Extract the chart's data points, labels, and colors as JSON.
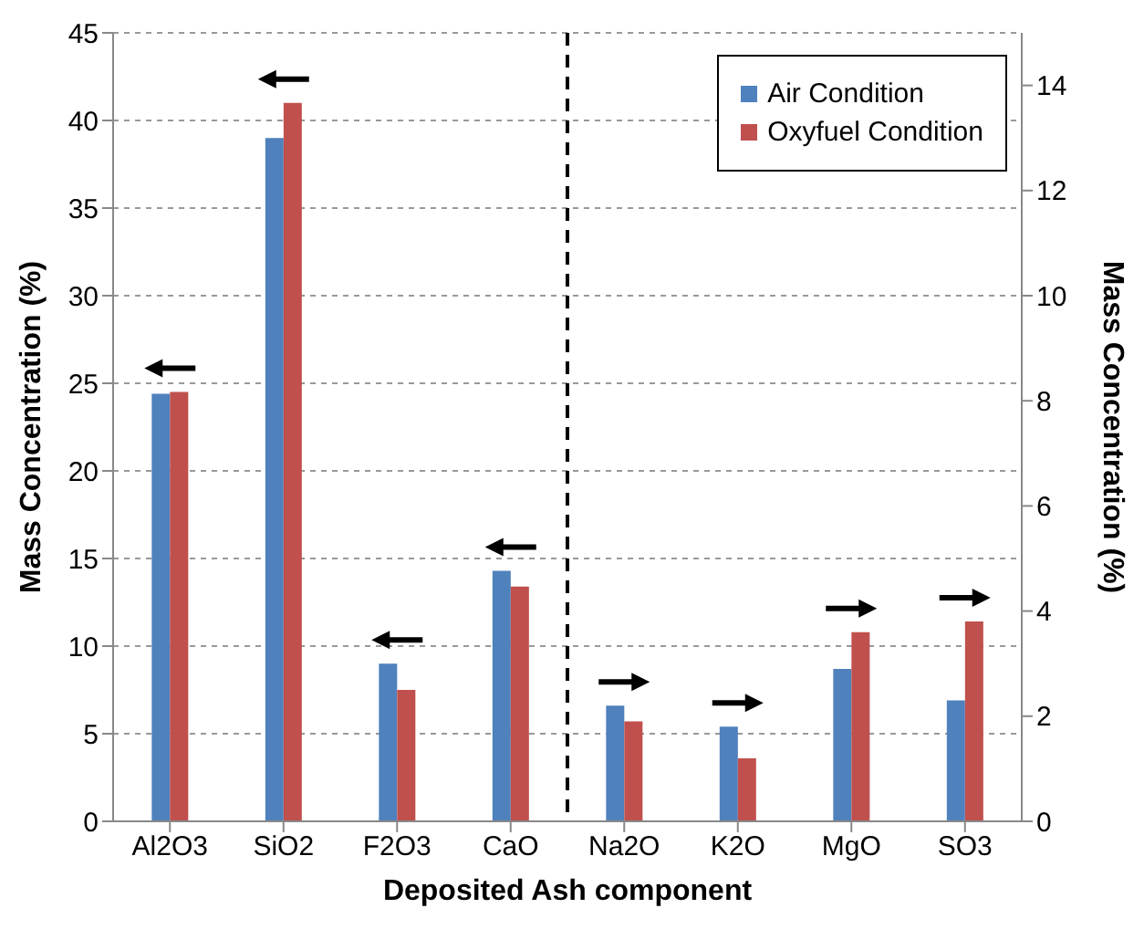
{
  "chart_data": {
    "type": "bar",
    "xlabel": "Deposited Ash component",
    "ylabel": "Mass Concentration (%)",
    "y2label": "Mass Concentration (%)",
    "categories": [
      "Al2O3",
      "SiO2",
      "F2O3",
      "CaO",
      "Na2O",
      "K2O",
      "MgO",
      "SO3"
    ],
    "series": [
      {
        "name": "Air Condition",
        "color": "#4f81bd",
        "values": [
          24.4,
          39.0,
          9.0,
          14.3,
          null,
          null,
          null,
          null
        ]
      },
      {
        "name": "Oxyfuel Condition",
        "color": "#c0504d",
        "values": [
          24.5,
          41.0,
          7.5,
          13.4,
          null,
          null,
          null,
          null
        ]
      },
      {
        "color": "#4f81bd",
        "axis": "y2",
        "values": [
          null,
          null,
          null,
          null,
          2.2,
          1.8,
          2.9,
          2.3
        ]
      },
      {
        "color": "#c0504d",
        "axis": "y2",
        "values": [
          null,
          null,
          null,
          null,
          1.9,
          1.2,
          3.6,
          3.8
        ]
      }
    ],
    "ylim": [
      0,
      45
    ],
    "yticks": [
      0,
      5,
      10,
      15,
      20,
      25,
      30,
      35,
      40,
      45
    ],
    "y2lim": [
      0,
      15
    ],
    "y2ticks": [
      0,
      2,
      4,
      6,
      8,
      10,
      12,
      14
    ],
    "grid": "y",
    "legend": "top right"
  }
}
